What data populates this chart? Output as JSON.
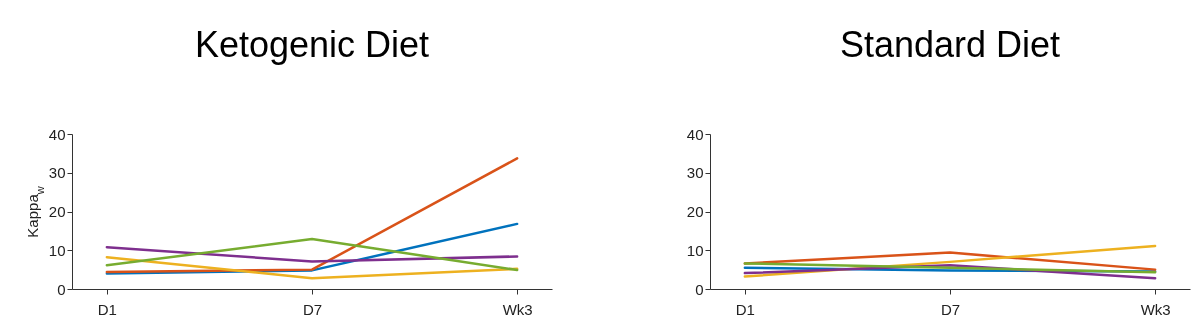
{
  "chart_data": [
    {
      "type": "line",
      "title": "Ketogenic Diet",
      "ylabel": "Kappa$_{w}$",
      "categories": [
        "D1",
        "D7",
        "Wk3"
      ],
      "ylim": [
        0,
        40
      ],
      "yticks": [
        0,
        10,
        20,
        30,
        40
      ],
      "series": [
        {
          "color": "#0072bd",
          "values": [
            4.0,
            4.8,
            16.8
          ]
        },
        {
          "color": "#d95319",
          "values": [
            4.4,
            5.0,
            33.7
          ]
        },
        {
          "color": "#edb120",
          "values": [
            8.2,
            2.8,
            5.2
          ]
        },
        {
          "color": "#7e2f8e",
          "values": [
            10.8,
            7.1,
            8.4
          ]
        },
        {
          "color": "#77ac30",
          "values": [
            6.1,
            12.9,
            4.9
          ]
        }
      ]
    },
    {
      "type": "line",
      "title": "Standard Diet",
      "categories": [
        "D1",
        "D7",
        "Wk3"
      ],
      "ylim": [
        0,
        40
      ],
      "yticks": [
        0,
        10,
        20,
        30,
        40
      ],
      "series": [
        {
          "color": "#0072bd",
          "values": [
            5.5,
            4.8,
            4.5
          ]
        },
        {
          "color": "#d95319",
          "values": [
            6.6,
            9.4,
            5.0
          ]
        },
        {
          "color": "#edb120",
          "values": [
            3.2,
            7.0,
            11.1
          ]
        },
        {
          "color": "#7e2f8e",
          "values": [
            4.1,
            6.1,
            2.8
          ]
        },
        {
          "color": "#77ac30",
          "values": [
            6.6,
            5.5,
            4.3
          ]
        }
      ]
    }
  ]
}
